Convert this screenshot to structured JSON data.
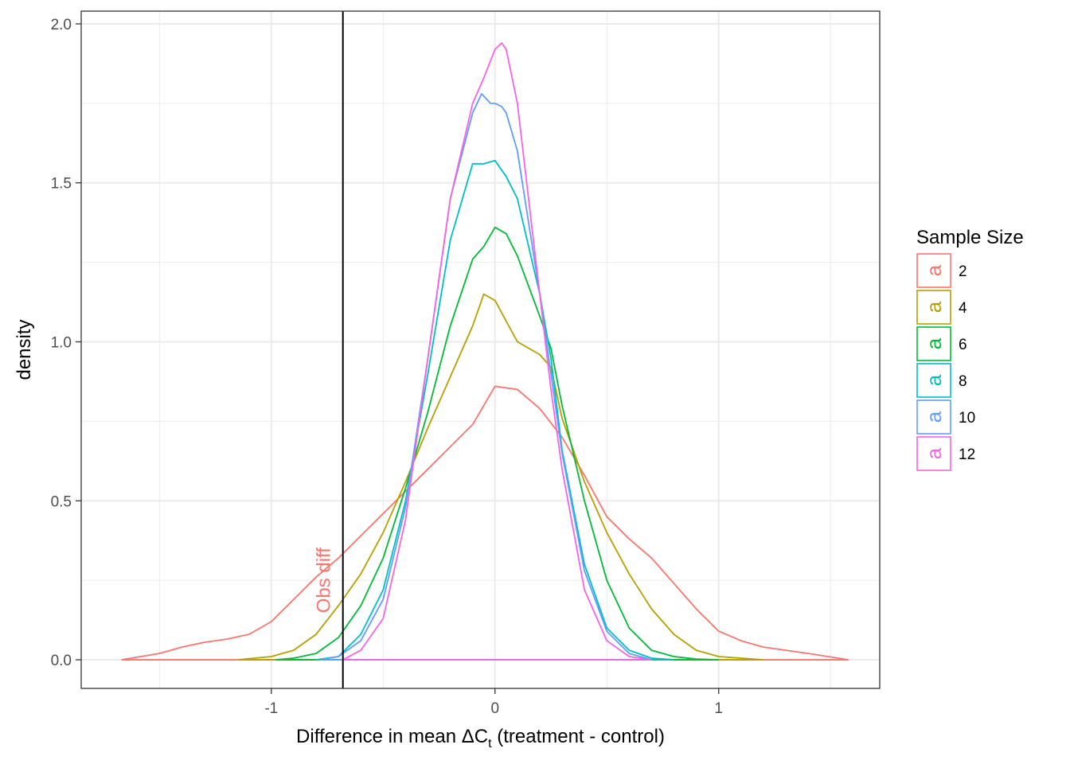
{
  "chart_data": {
    "type": "line",
    "title": "",
    "xlabel_prefix": "Difference in mean ",
    "xlabel_delta": "Δ",
    "xlabel_var": "C",
    "xlabel_sub": "t",
    "xlabel_suffix": " (treatment - control)",
    "ylabel": "density",
    "xlim": [
      -1.85,
      1.72
    ],
    "ylim": [
      -0.09,
      2.04
    ],
    "x_ticks": [
      -1,
      0,
      1
    ],
    "x_tick_labels": [
      "-1",
      "0",
      "1"
    ],
    "y_ticks": [
      0.0,
      0.5,
      1.0,
      1.5,
      2.0
    ],
    "y_tick_labels": [
      "0.0",
      "0.5",
      "1.0",
      "1.5",
      "2.0"
    ],
    "grid": true,
    "legend_title": "Sample Size",
    "legend_position": "right",
    "legend_key_glyph": "a",
    "vline": {
      "x": -0.68,
      "color": "#000000"
    },
    "annotation": {
      "text": "Obs diff",
      "x": -0.76,
      "y": 0.25,
      "color": "#F8766D",
      "rotation": -90
    },
    "series": [
      {
        "name": "2",
        "color": "#F8766D",
        "x": [
          -1.67,
          -1.5,
          -1.4,
          -1.3,
          -1.2,
          -1.1,
          -1.0,
          -0.9,
          -0.8,
          -0.7,
          -0.6,
          -0.5,
          -0.4,
          -0.3,
          -0.2,
          -0.1,
          0.0,
          0.1,
          0.2,
          0.3,
          0.4,
          0.5,
          0.6,
          0.7,
          0.8,
          0.9,
          1.0,
          1.1,
          1.2,
          1.3,
          1.4,
          1.58
        ],
        "y": [
          0.0,
          0.02,
          0.04,
          0.055,
          0.065,
          0.08,
          0.12,
          0.19,
          0.26,
          0.32,
          0.39,
          0.46,
          0.53,
          0.6,
          0.67,
          0.74,
          0.86,
          0.85,
          0.79,
          0.7,
          0.58,
          0.45,
          0.38,
          0.32,
          0.24,
          0.16,
          0.09,
          0.06,
          0.04,
          0.03,
          0.02,
          0.0
        ]
      },
      {
        "name": "4",
        "color": "#B79F00",
        "x": [
          -1.15,
          -1.0,
          -0.9,
          -0.8,
          -0.7,
          -0.6,
          -0.5,
          -0.4,
          -0.3,
          -0.2,
          -0.1,
          -0.05,
          0.0,
          0.1,
          0.2,
          0.25,
          0.3,
          0.4,
          0.5,
          0.6,
          0.7,
          0.8,
          0.9,
          1.0,
          1.1,
          1.2
        ],
        "y": [
          0.0,
          0.01,
          0.03,
          0.08,
          0.17,
          0.27,
          0.4,
          0.56,
          0.73,
          0.89,
          1.05,
          1.15,
          1.13,
          1.0,
          0.96,
          0.92,
          0.76,
          0.56,
          0.4,
          0.27,
          0.16,
          0.08,
          0.03,
          0.01,
          0.005,
          0.0
        ]
      },
      {
        "name": "6",
        "color": "#00BA38",
        "x": [
          -0.98,
          -0.9,
          -0.8,
          -0.7,
          -0.6,
          -0.5,
          -0.4,
          -0.3,
          -0.2,
          -0.1,
          -0.05,
          0.0,
          0.05,
          0.1,
          0.2,
          0.25,
          0.3,
          0.4,
          0.5,
          0.6,
          0.7,
          0.8,
          0.9,
          1.0
        ],
        "y": [
          0.0,
          0.005,
          0.02,
          0.07,
          0.17,
          0.32,
          0.54,
          0.78,
          1.05,
          1.26,
          1.3,
          1.36,
          1.34,
          1.27,
          1.08,
          0.98,
          0.8,
          0.5,
          0.25,
          0.1,
          0.03,
          0.01,
          0.002,
          0.0
        ]
      },
      {
        "name": "8",
        "color": "#00BFC4",
        "x": [
          -0.8,
          -0.7,
          -0.6,
          -0.5,
          -0.4,
          -0.3,
          -0.2,
          -0.1,
          -0.05,
          0.0,
          0.05,
          0.1,
          0.2,
          0.25,
          0.3,
          0.4,
          0.5,
          0.6,
          0.7,
          0.8
        ],
        "y": [
          0.0,
          0.01,
          0.08,
          0.22,
          0.5,
          0.9,
          1.32,
          1.56,
          1.56,
          1.57,
          1.52,
          1.45,
          1.15,
          0.95,
          0.66,
          0.3,
          0.1,
          0.03,
          0.005,
          0.0
        ]
      },
      {
        "name": "10",
        "color": "#619CFF",
        "x": [
          -0.78,
          -0.7,
          -0.6,
          -0.5,
          -0.4,
          -0.3,
          -0.2,
          -0.1,
          -0.06,
          -0.02,
          0.0,
          0.03,
          0.05,
          0.1,
          0.2,
          0.25,
          0.3,
          0.4,
          0.5,
          0.6,
          0.7
        ],
        "y": [
          0.0,
          0.01,
          0.06,
          0.19,
          0.48,
          0.95,
          1.45,
          1.72,
          1.78,
          1.75,
          1.75,
          1.74,
          1.72,
          1.6,
          1.15,
          0.9,
          0.65,
          0.28,
          0.09,
          0.02,
          0.0
        ]
      },
      {
        "name": "12",
        "color": "#F564E3",
        "x": [
          -0.68,
          -0.6,
          -0.5,
          -0.4,
          -0.3,
          -0.2,
          -0.1,
          -0.05,
          0.0,
          0.03,
          0.05,
          0.1,
          0.15,
          0.2,
          0.25,
          0.3,
          0.4,
          0.5,
          0.6,
          0.7
        ],
        "y": [
          0.0,
          0.03,
          0.13,
          0.44,
          0.95,
          1.45,
          1.75,
          1.83,
          1.92,
          1.94,
          1.92,
          1.75,
          1.45,
          1.15,
          0.85,
          0.6,
          0.22,
          0.06,
          0.01,
          0.0
        ]
      }
    ]
  }
}
